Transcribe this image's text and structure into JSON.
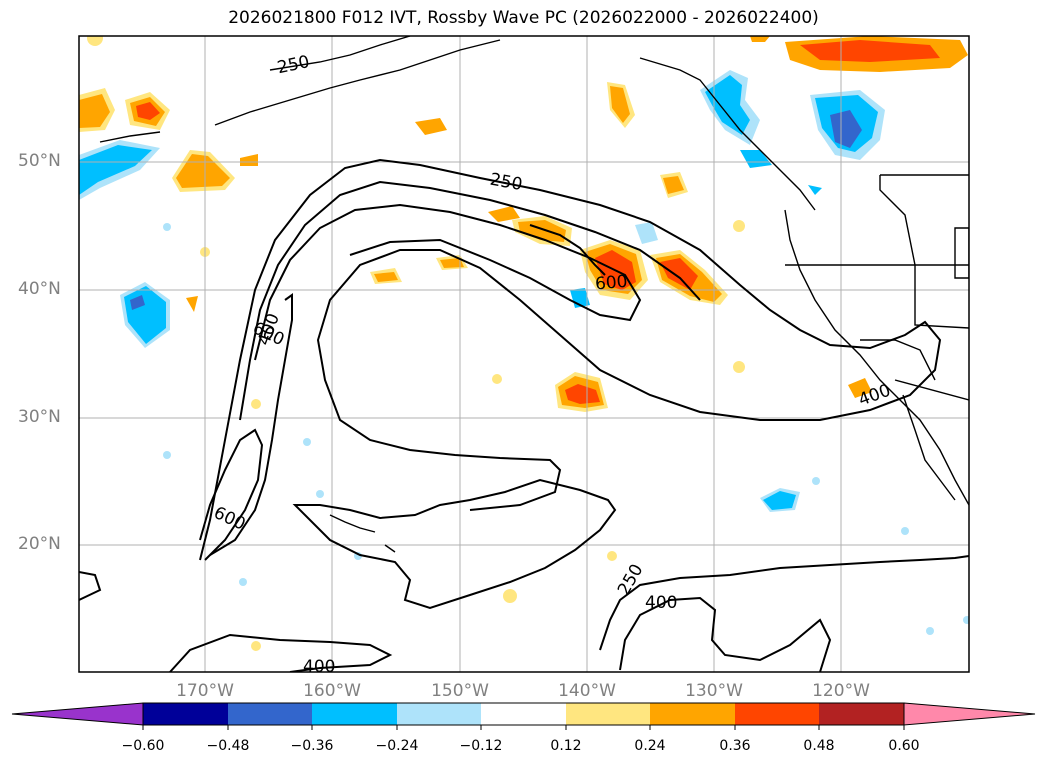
{
  "title": "2026021800 F012 IVT, Rossby Wave PC (2026022000 - 2026022400)",
  "map": {
    "lat_labels": [
      "50°N",
      "40°N",
      "30°N",
      "20°N"
    ],
    "lon_labels": [
      "170°W",
      "160°W",
      "150°W",
      "140°W",
      "130°W",
      "120°W"
    ],
    "contour_levels": [
      "250",
      "400",
      "600"
    ],
    "contour_labels": [
      "250",
      "250",
      "400",
      "600",
      "600",
      "600",
      "400",
      "250",
      "400",
      "400"
    ]
  },
  "colorbar": {
    "ticks": [
      "−0.60",
      "−0.48",
      "−0.36",
      "−0.24",
      "−0.12",
      "0.12",
      "0.24",
      "0.36",
      "0.48",
      "0.60"
    ],
    "colors": [
      "#9933cc",
      "#000099",
      "#3366cc",
      "#00bfff",
      "#aee3fa",
      "#ffffff",
      "#ffe680",
      "#ffa500",
      "#ff4500",
      "#b22222",
      "#ff88aa"
    ]
  }
}
